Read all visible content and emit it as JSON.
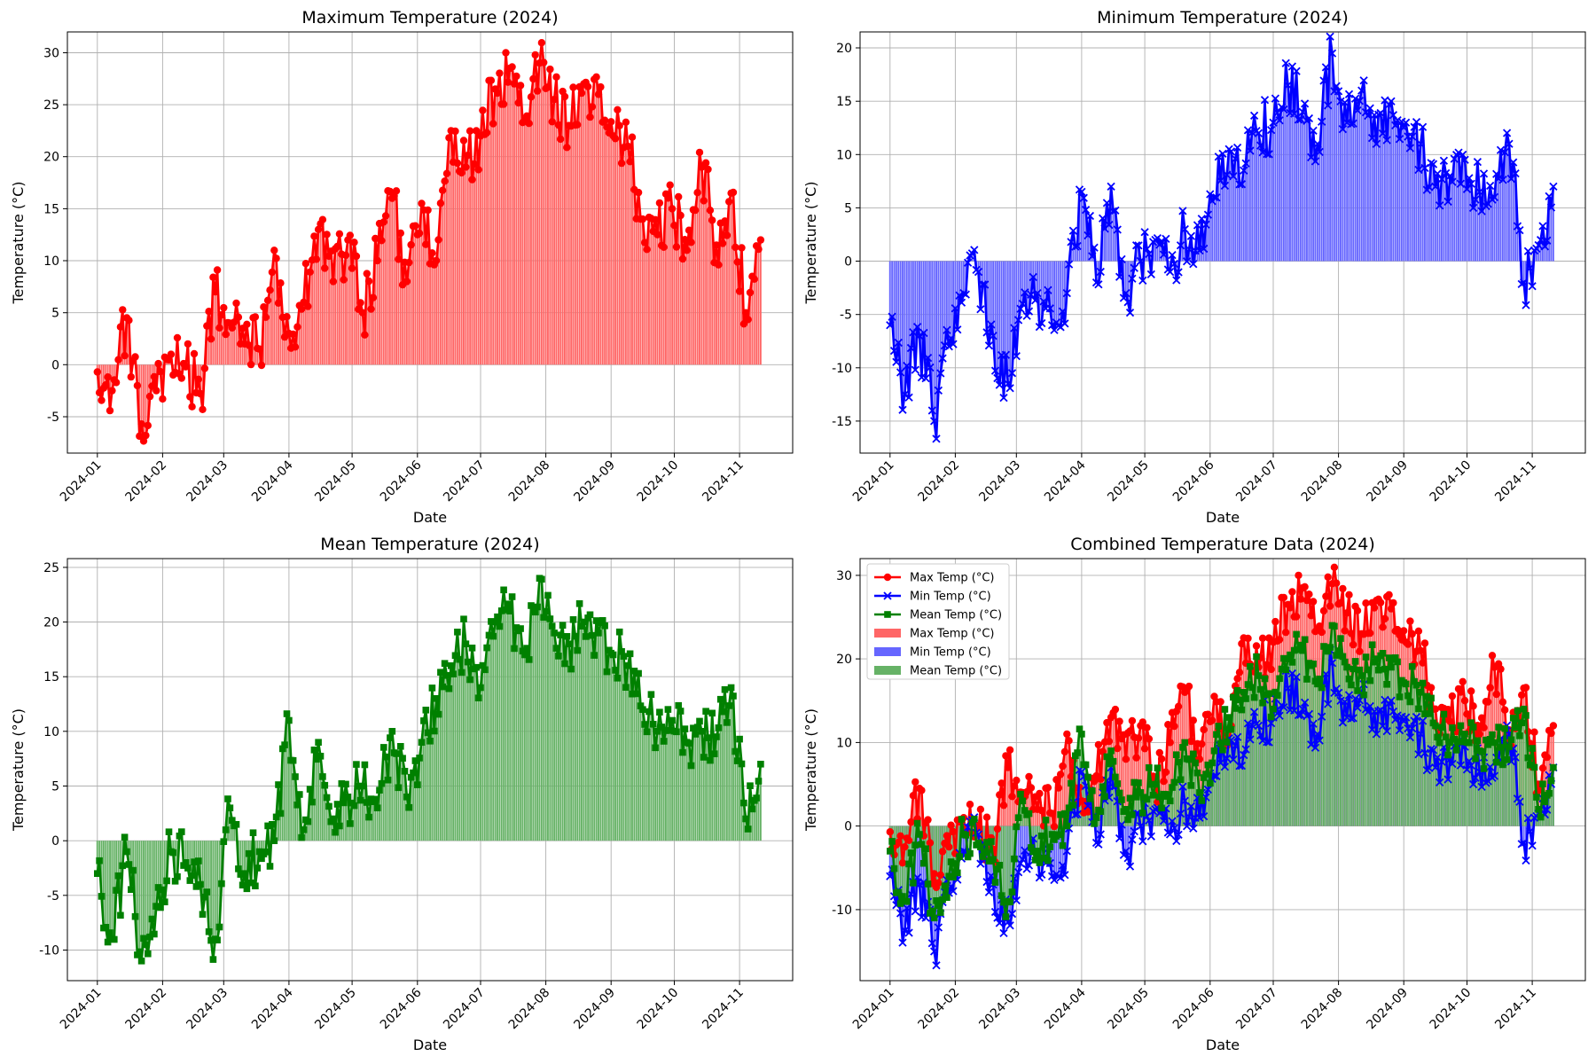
{
  "chart_data": [
    {
      "type": "line",
      "title": "Maximum Temperature (2024)",
      "xlabel": "Date",
      "ylabel": "Temperature (°C)",
      "x_range": [
        "2024-01-01",
        "2024-11-12"
      ],
      "ylim": [
        -8.5,
        32
      ],
      "yticks": [
        -5,
        0,
        5,
        10,
        15,
        20,
        25,
        30
      ],
      "xticks": [
        "2024-01",
        "2024-02",
        "2024-03",
        "2024-04",
        "2024-05",
        "2024-06",
        "2024-07",
        "2024-08",
        "2024-09",
        "2024-10",
        "2024-11"
      ],
      "grid": true,
      "marker": "circle",
      "bars": true,
      "series": [
        {
          "color": "#ff0000",
          "x": [
            "2024-01-01",
            "2024-01-08",
            "2024-01-15",
            "2024-01-22",
            "2024-01-29",
            "2024-02-05",
            "2024-02-12",
            "2024-02-19",
            "2024-02-26",
            "2024-03-04",
            "2024-03-11",
            "2024-03-18",
            "2024-03-25",
            "2024-04-01",
            "2024-04-08",
            "2024-04-15",
            "2024-04-22",
            "2024-04-29",
            "2024-05-06",
            "2024-05-13",
            "2024-05-20",
            "2024-05-27",
            "2024-06-03",
            "2024-06-10",
            "2024-06-17",
            "2024-06-24",
            "2024-07-01",
            "2024-07-08",
            "2024-07-15",
            "2024-07-22",
            "2024-07-29",
            "2024-08-05",
            "2024-08-12",
            "2024-08-19",
            "2024-08-26",
            "2024-09-02",
            "2024-09-09",
            "2024-09-16",
            "2024-09-23",
            "2024-09-30",
            "2024-10-07",
            "2024-10-14",
            "2024-10-21",
            "2024-10-28",
            "2024-11-04",
            "2024-11-11"
          ],
          "values": [
            -0.7,
            -2.5,
            4.5,
            -5.7,
            -2.5,
            1.0,
            -0.2,
            -2.8,
            7.0,
            4.0,
            2.0,
            1.5,
            11.0,
            3.0,
            6.0,
            13.0,
            8.0,
            12.0,
            5.0,
            10.0,
            16.0,
            8.0,
            15.5,
            10.0,
            22.5,
            19.0,
            22.0,
            26.5,
            28.5,
            23.5,
            29.0,
            25.5,
            23.0,
            27.0,
            26.0,
            22.0,
            21.0,
            14.0,
            12.5,
            15.0,
            11.0,
            19.0,
            11.5,
            16.5,
            5.0,
            12.0
          ]
        }
      ]
    },
    {
      "type": "line",
      "title": "Minimum Temperature (2024)",
      "xlabel": "Date",
      "ylabel": "Temperature (°C)",
      "x_range": [
        "2024-01-01",
        "2024-11-12"
      ],
      "ylim": [
        -18,
        21.5
      ],
      "yticks": [
        -15,
        -10,
        -5,
        0,
        5,
        10,
        15,
        20
      ],
      "xticks": [
        "2024-01",
        "2024-02",
        "2024-03",
        "2024-04",
        "2024-05",
        "2024-06",
        "2024-07",
        "2024-08",
        "2024-09",
        "2024-10",
        "2024-11"
      ],
      "grid": true,
      "marker": "x",
      "bars": true,
      "series": [
        {
          "color": "#0000ff",
          "x": [
            "2024-01-01",
            "2024-01-08",
            "2024-01-15",
            "2024-01-22",
            "2024-01-29",
            "2024-02-05",
            "2024-02-12",
            "2024-02-19",
            "2024-02-26",
            "2024-03-04",
            "2024-03-11",
            "2024-03-18",
            "2024-03-25",
            "2024-04-01",
            "2024-04-08",
            "2024-04-15",
            "2024-04-22",
            "2024-04-29",
            "2024-05-06",
            "2024-05-13",
            "2024-05-20",
            "2024-05-27",
            "2024-06-03",
            "2024-06-10",
            "2024-06-17",
            "2024-06-24",
            "2024-07-01",
            "2024-07-08",
            "2024-07-15",
            "2024-07-22",
            "2024-07-29",
            "2024-08-05",
            "2024-08-12",
            "2024-08-19",
            "2024-08-26",
            "2024-09-02",
            "2024-09-09",
            "2024-09-16",
            "2024-09-23",
            "2024-09-30",
            "2024-10-07",
            "2024-10-14",
            "2024-10-21",
            "2024-10-28",
            "2024-11-04",
            "2024-11-11"
          ],
          "values": [
            -6.0,
            -12.5,
            -7.0,
            -15.0,
            -8.0,
            -3.0,
            -1.0,
            -7.0,
            -11.5,
            -4.0,
            -3.0,
            -6.0,
            -3.0,
            6.5,
            -2.0,
            7.0,
            -3.0,
            0.0,
            2.0,
            -1.0,
            3.0,
            1.0,
            6.0,
            10.5,
            8.5,
            12.0,
            13.0,
            16.5,
            14.0,
            11.0,
            19.5,
            13.0,
            16.0,
            11.0,
            15.0,
            13.0,
            11.0,
            7.0,
            8.0,
            9.5,
            6.5,
            6.0,
            11.0,
            -2.0,
            1.5,
            7.0
          ]
        }
      ]
    },
    {
      "type": "line",
      "title": "Mean Temperature (2024)",
      "xlabel": "Date",
      "ylabel": "Temperature (°C)",
      "x_range": [
        "2024-01-01",
        "2024-11-12"
      ],
      "ylim": [
        -12.8,
        25.8
      ],
      "yticks": [
        -10,
        -5,
        0,
        5,
        10,
        15,
        20,
        25
      ],
      "xticks": [
        "2024-01",
        "2024-02",
        "2024-03",
        "2024-04",
        "2024-05",
        "2024-06",
        "2024-07",
        "2024-08",
        "2024-09",
        "2024-10",
        "2024-11"
      ],
      "grid": true,
      "marker": "square",
      "bars": true,
      "series": [
        {
          "color": "#008000",
          "x": [
            "2024-01-01",
            "2024-01-08",
            "2024-01-15",
            "2024-01-22",
            "2024-01-29",
            "2024-02-05",
            "2024-02-12",
            "2024-02-19",
            "2024-02-26",
            "2024-03-04",
            "2024-03-11",
            "2024-03-18",
            "2024-03-25",
            "2024-04-01",
            "2024-04-08",
            "2024-04-15",
            "2024-04-22",
            "2024-04-29",
            "2024-05-06",
            "2024-05-13",
            "2024-05-20",
            "2024-05-27",
            "2024-06-03",
            "2024-06-10",
            "2024-06-17",
            "2024-06-24",
            "2024-07-01",
            "2024-07-08",
            "2024-07-15",
            "2024-07-22",
            "2024-07-29",
            "2024-08-05",
            "2024-08-12",
            "2024-08-19",
            "2024-08-26",
            "2024-09-02",
            "2024-09-09",
            "2024-09-16",
            "2024-09-23",
            "2024-09-30",
            "2024-10-07",
            "2024-10-14",
            "2024-10-21",
            "2024-10-28",
            "2024-11-04",
            "2024-11-11"
          ],
          "values": [
            -3.0,
            -9.0,
            -1.0,
            -11.0,
            -6.0,
            -1.0,
            -2.0,
            -4.0,
            -9.0,
            3.0,
            -3.0,
            -1.0,
            0.0,
            11.0,
            1.0,
            9.0,
            2.0,
            4.0,
            5.0,
            3.0,
            10.0,
            4.0,
            9.0,
            13.0,
            16.0,
            18.0,
            14.0,
            20.0,
            21.0,
            17.0,
            24.0,
            19.0,
            18.0,
            20.0,
            19.0,
            17.0,
            16.0,
            12.0,
            10.0,
            11.0,
            9.0,
            10.0,
            9.5,
            14.0,
            2.0,
            7.0
          ]
        }
      ]
    },
    {
      "type": "line",
      "title": "Combined Temperature Data (2024)",
      "xlabel": "Date",
      "ylabel": "Temperature (°C)",
      "x_range": [
        "2024-01-01",
        "2024-11-12"
      ],
      "ylim": [
        -18.5,
        32
      ],
      "yticks": [
        -10,
        0,
        10,
        20,
        30
      ],
      "xticks": [
        "2024-01",
        "2024-02",
        "2024-03",
        "2024-04",
        "2024-05",
        "2024-06",
        "2024-07",
        "2024-08",
        "2024-09",
        "2024-10",
        "2024-11"
      ],
      "grid": true,
      "bars": true,
      "legend": "upper-left",
      "legend_entries": [
        {
          "label": "Max Temp (°C)",
          "kind": "line",
          "marker": "circle",
          "color": "#ff0000"
        },
        {
          "label": "Min Temp (°C)",
          "kind": "line",
          "marker": "x",
          "color": "#0000ff"
        },
        {
          "label": "Mean Temp (°C)",
          "kind": "line",
          "marker": "square",
          "color": "#008000"
        },
        {
          "label": "Max Temp (°C)",
          "kind": "bar",
          "color": "#ff6666"
        },
        {
          "label": "Min Temp (°C)",
          "kind": "bar",
          "color": "#6666ff"
        },
        {
          "label": "Mean Temp (°C)",
          "kind": "bar",
          "color": "#66b266"
        }
      ],
      "series_refs": [
        0,
        1,
        2
      ]
    }
  ]
}
